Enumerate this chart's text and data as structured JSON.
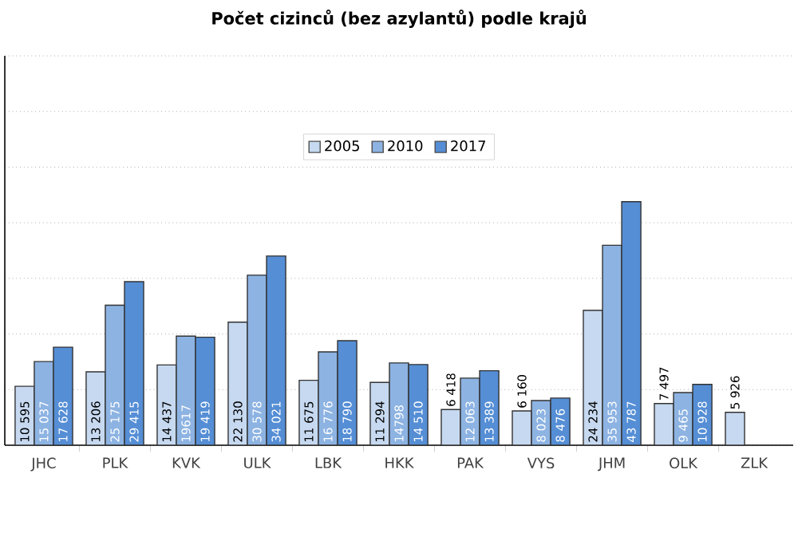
{
  "chart_data": {
    "type": "bar",
    "title": "Počet cizinců (bez azylantů) podle krajů",
    "categories": [
      "JHC",
      "PLK",
      "KVK",
      "ULK",
      "LBK",
      "HKK",
      "PAK",
      "VYS",
      "JHM",
      "OLK",
      "ZLK"
    ],
    "series": [
      {
        "name": "2005",
        "color": "#c6d9f0",
        "values": [
          10595,
          13206,
          14437,
          22130,
          11675,
          11294,
          6418,
          6160,
          24234,
          7497,
          5926
        ],
        "value_labels": [
          "10 595",
          "13 206",
          "14 437",
          "22 130",
          "11 675",
          "11 294",
          "6 418",
          "6 160",
          "24 234",
          "7 497",
          "5 926"
        ]
      },
      {
        "name": "2010",
        "color": "#8db3e2",
        "values": [
          15037,
          25175,
          19617,
          30578,
          16776,
          14798,
          12063,
          8023,
          35953,
          9465,
          null
        ],
        "value_labels": [
          "15 037",
          "25 175",
          "19617",
          "30 578",
          "16 776",
          "14798",
          "12 063",
          "8 023",
          "35 953",
          "9 465",
          null
        ]
      },
      {
        "name": "2017",
        "color": "#558ed5",
        "values": [
          17628,
          29415,
          19419,
          34021,
          18790,
          14510,
          13389,
          8476,
          43787,
          10928,
          null
        ],
        "value_labels": [
          "17 628",
          "29 415",
          "19 419",
          "34 021",
          "18 790",
          "14 510",
          "13 389",
          "8 476",
          "43 787",
          "10 928",
          null
        ]
      }
    ],
    "ylim": [
      0,
      70000
    ],
    "yticks": [
      {
        "value": 0,
        "label": null
      },
      {
        "value": 10000,
        "label": null
      },
      {
        "value": 20000,
        "label": null
      },
      {
        "value": 30000,
        "label": null
      },
      {
        "value": 40000,
        "label": null
      },
      {
        "value": 50000,
        "label": null
      },
      {
        "value": 60000,
        "label": null
      },
      {
        "value": 70000,
        "label": null
      }
    ],
    "tick_labels": "x",
    "grid": "y",
    "legend": "top"
  }
}
